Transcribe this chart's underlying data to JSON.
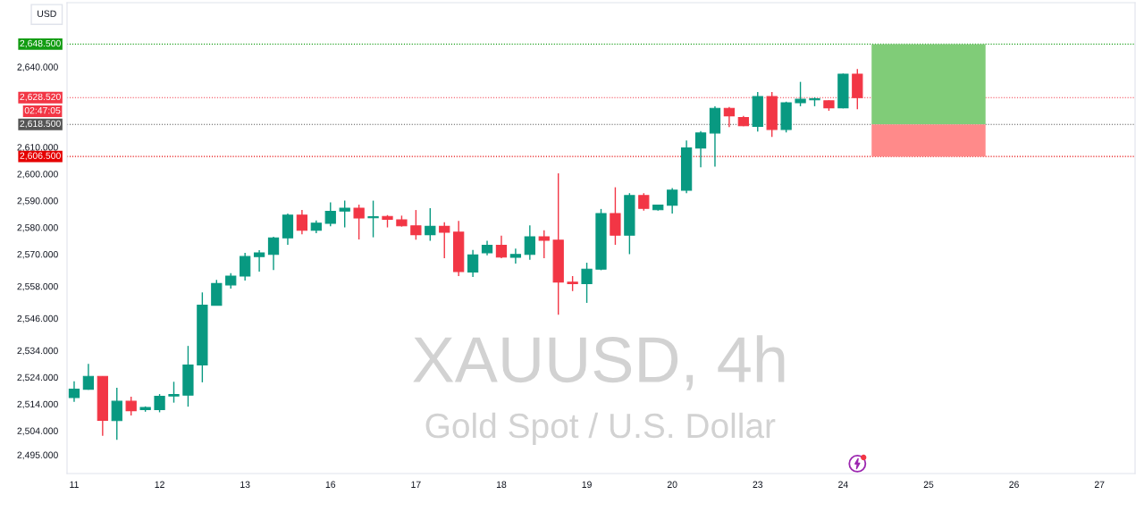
{
  "chart_data": {
    "type": "candlestick",
    "title": "XAUUSD, 4h",
    "subtitle": "Gold Spot / U.S. Dollar",
    "ylabel": "USD",
    "categories": [
      "11",
      null,
      null,
      null,
      null,
      null,
      "12",
      null,
      null,
      null,
      null,
      null,
      "13",
      null,
      null,
      null,
      null,
      null,
      "16",
      null,
      null,
      null,
      null,
      null,
      "17",
      null,
      null,
      null,
      null,
      null,
      "18",
      null,
      null,
      null,
      null,
      null,
      "19",
      null,
      null,
      null,
      null,
      null,
      "20",
      null,
      null,
      null,
      null,
      null,
      "23",
      null,
      null,
      null,
      null,
      null,
      "24",
      null,
      null,
      null,
      null,
      null,
      "25",
      null,
      null,
      null,
      null,
      null,
      "26",
      null,
      null,
      null,
      null,
      null,
      "27",
      null,
      null
    ],
    "ohlc": [
      [
        2516.4,
        2522.5,
        2514.8,
        2519.5
      ],
      [
        2519.5,
        2529.0,
        2519.3,
        2524.3
      ],
      [
        2524.3,
        2524.3,
        2502.1,
        2507.9
      ],
      [
        2507.8,
        2520.1,
        2500.6,
        2515.0
      ],
      [
        2515.0,
        2516.7,
        2509.7,
        2511.5
      ],
      [
        2511.9,
        2513.1,
        2511.1,
        2512.7
      ],
      [
        2511.9,
        2517.7,
        2510.9,
        2516.9
      ],
      [
        2517.0,
        2522.3,
        2514.5,
        2517.5
      ],
      [
        2517.3,
        2535.7,
        2513.0,
        2528.6
      ],
      [
        2528.6,
        2555.7,
        2522.1,
        2550.9
      ],
      [
        2550.9,
        2560.4,
        2550.9,
        2559.0
      ],
      [
        2558.5,
        2562.9,
        2557.1,
        2561.8
      ],
      [
        2561.8,
        2570.5,
        2560.1,
        2569.1
      ],
      [
        2569.1,
        2571.5,
        2563.5,
        2570.5
      ],
      [
        2569.9,
        2576.5,
        2564.1,
        2576.1
      ],
      [
        2576.1,
        2585.2,
        2573.5,
        2584.6
      ],
      [
        2584.6,
        2586.5,
        2577.4,
        2578.9
      ],
      [
        2578.9,
        2582.6,
        2577.8,
        2581.6
      ],
      [
        2581.5,
        2589.4,
        2580.4,
        2586.0
      ],
      [
        2586.1,
        2590.0,
        2580.0,
        2587.2
      ],
      [
        2587.2,
        2588.5,
        2575.5,
        2583.5
      ],
      [
        2583.6,
        2590.0,
        2576.3,
        2584.0
      ],
      [
        2584.1,
        2584.6,
        2580.0,
        2583.0
      ],
      [
        2582.8,
        2584.4,
        2580.3,
        2580.6
      ],
      [
        2580.6,
        2586.5,
        2575.4,
        2577.3
      ],
      [
        2577.3,
        2587.2,
        2575.0,
        2580.4
      ],
      [
        2580.4,
        2581.9,
        2568.5,
        2578.2
      ],
      [
        2578.2,
        2582.4,
        2561.8,
        2563.5
      ],
      [
        2563.3,
        2571.6,
        2561.5,
        2569.7
      ],
      [
        2570.5,
        2575.0,
        2569.6,
        2573.3
      ],
      [
        2573.3,
        2576.9,
        2568.5,
        2568.9
      ],
      [
        2568.8,
        2572.1,
        2566.5,
        2569.9
      ],
      [
        2569.9,
        2580.8,
        2567.9,
        2576.5
      ],
      [
        2576.5,
        2578.9,
        2568.5,
        2575.2
      ],
      [
        2575.2,
        2600.2,
        2547.4,
        2559.6
      ],
      [
        2559.5,
        2561.8,
        2556.2,
        2559.0
      ],
      [
        2559.0,
        2566.8,
        2551.8,
        2564.4
      ],
      [
        2564.4,
        2586.9,
        2564.0,
        2585.2
      ],
      [
        2585.2,
        2595.0,
        2573.5,
        2577.1
      ],
      [
        2577.1,
        2592.8,
        2570.0,
        2591.9
      ],
      [
        2591.9,
        2592.8,
        2586.3,
        2587.1
      ],
      [
        2586.6,
        2588.5,
        2586.3,
        2588.3
      ],
      [
        2588.3,
        2594.7,
        2585.2,
        2593.9
      ],
      [
        2593.9,
        2612.5,
        2592.8,
        2609.7
      ],
      [
        2609.7,
        2616.0,
        2602.5,
        2615.3
      ],
      [
        2615.3,
        2625.3,
        2602.7,
        2624.5
      ],
      [
        2624.5,
        2625.0,
        2617.5,
        2621.7
      ],
      [
        2621.1,
        2621.7,
        2617.8,
        2618.0
      ],
      [
        2617.8,
        2630.6,
        2615.8,
        2628.9
      ],
      [
        2628.9,
        2630.6,
        2613.8,
        2616.6
      ],
      [
        2616.6,
        2627.0,
        2615.5,
        2626.6
      ],
      [
        2626.6,
        2634.4,
        2625.3,
        2627.9
      ],
      [
        2627.7,
        2628.6,
        2625.3,
        2628.1
      ],
      [
        2627.3,
        2627.5,
        2623.6,
        2624.7
      ],
      [
        2624.7,
        2637.5,
        2624.5,
        2637.3
      ],
      [
        2637.3,
        2639.2,
        2624.2,
        2628.5
      ],
      null,
      null,
      null,
      null,
      null,
      null,
      null,
      null,
      null,
      null,
      null,
      null,
      null,
      null,
      null,
      null,
      null,
      null,
      null
    ],
    "colors": [
      "#089981",
      "#089981",
      "#f23645",
      "#089981",
      "#f23645",
      "#089981",
      "#089981",
      "#089981",
      "#089981",
      "#089981",
      "#089981",
      "#089981",
      "#089981",
      "#089981",
      "#089981",
      "#089981",
      "#f23645",
      "#089981",
      "#089981",
      "#089981",
      "#f23645",
      "#089981",
      "#f23645",
      "#f23645",
      "#f23645",
      "#089981",
      "#f23645",
      "#f23645",
      "#089981",
      "#089981",
      "#f23645",
      "#089981",
      "#089981",
      "#f23645",
      "#f23645",
      "#f23645",
      "#089981",
      "#089981",
      "#f23645",
      "#089981",
      "#f23645",
      "#089981",
      "#089981",
      "#089981",
      "#089981",
      "#089981",
      "#f23645",
      "#f23645",
      "#089981",
      "#f23645",
      "#089981",
      "#089981",
      "#089981",
      "#f23645",
      "#089981",
      "#f23645",
      null,
      null,
      null,
      null,
      null,
      null,
      null,
      null,
      null,
      null,
      null,
      null,
      null,
      null,
      null,
      null,
      null,
      null,
      null
    ],
    "ylim": [
      2488,
      2664
    ],
    "yticks": [
      {
        "value": 2495,
        "label": "2,495.000"
      },
      {
        "value": 2504,
        "label": "2,504.000"
      },
      {
        "value": 2514,
        "label": "2,514.000"
      },
      {
        "value": 2524,
        "label": "2,524.000"
      },
      {
        "value": 2534,
        "label": "2,534.000"
      },
      {
        "value": 2546,
        "label": "2,546.000"
      },
      {
        "value": 2558,
        "label": "2,558.000"
      },
      {
        "value": 2570,
        "label": "2,570.000"
      },
      {
        "value": 2580,
        "label": "2,580.000"
      },
      {
        "value": 2590,
        "label": "2,590.000"
      },
      {
        "value": 2600,
        "label": "2,600.000"
      },
      {
        "value": 2610,
        "label": "2,610.000"
      },
      {
        "value": 2640,
        "label": "2,640.000"
      }
    ],
    "ref_lines": [
      {
        "axis": "y",
        "value": 2648.5,
        "label": "2,648.500",
        "color": "#129c12",
        "line_style": "dotted"
      },
      {
        "axis": "y",
        "value": 2628.52,
        "label": "2,628.520",
        "color": "#f23645",
        "line_style": "dotted"
      },
      {
        "axis": "y",
        "value": 2618.5,
        "label": "2,618.500",
        "color": "#555555",
        "line_style": "dotted"
      },
      {
        "axis": "y",
        "value": 2606.5,
        "label": "2,606.500",
        "color": "#e50000",
        "line_style": "dotted"
      }
    ],
    "bands": [
      {
        "axis": "y",
        "from": 2618.5,
        "to": 2648.5,
        "color": "#80cc78"
      },
      {
        "axis": "y",
        "from": 2606.5,
        "to": 2618.5,
        "color": "#ff8a8a"
      }
    ],
    "annotations": [
      "02:47:05"
    ]
  }
}
